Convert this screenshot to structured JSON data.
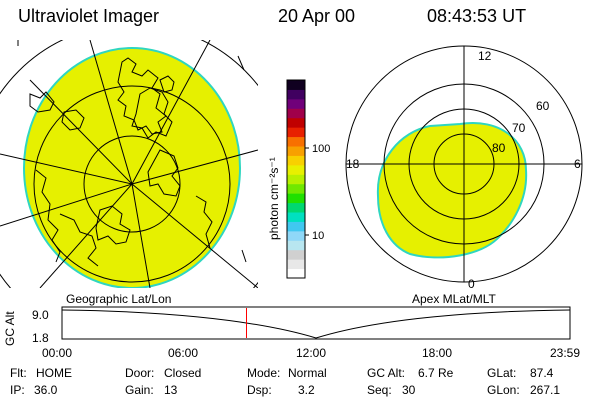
{
  "header": {
    "title": "Ultraviolet Imager",
    "date": "20 Apr 00",
    "time": "08:43:53 UT"
  },
  "colors": {
    "aurora_fill": "#e6f000",
    "aurora_edge": "#2fd6c0",
    "accent_marker": "#ff0000"
  },
  "left_map": {
    "label": "Geographic Lat/Lon"
  },
  "right_map": {
    "label": "Apex MLat/MLT",
    "mlt_labels": [
      "12",
      "18",
      "6",
      "0"
    ],
    "lat_labels": [
      "60",
      "70",
      "80"
    ]
  },
  "colorbar": {
    "unit_label": "photon cm⁻²s⁻¹",
    "ticks": [
      "100",
      "10"
    ],
    "colors": [
      "#ffffff",
      "#e8e8e8",
      "#d0d0d0",
      "#b8e6f0",
      "#8fd8f8",
      "#40c8f0",
      "#00e0c0",
      "#00d870",
      "#20e000",
      "#70e800",
      "#b8f000",
      "#e8f000",
      "#f8d000",
      "#f8a000",
      "#f87000",
      "#e82000",
      "#c00000",
      "#a0004a",
      "#70007a",
      "#400060",
      "#100020"
    ]
  },
  "timeline": {
    "axis_label": "GC Alt",
    "y_ticks": [
      "9.0",
      "1.8"
    ],
    "x_ticks": [
      "00:00",
      "06:00",
      "12:00",
      "18:00",
      "23:59"
    ],
    "marker_time": "08:43"
  },
  "status": {
    "row1": [
      {
        "label": "Flt:",
        "value": "HOME"
      },
      {
        "label": "Door:",
        "value": "Closed"
      },
      {
        "label": "Mode:",
        "value": "Normal"
      },
      {
        "label": "GC Alt:",
        "value": "6.7 Re"
      },
      {
        "label": "GLat:",
        "value": "87.4"
      }
    ],
    "row2": [
      {
        "label": "IP:",
        "value": "36.0"
      },
      {
        "label": "Gain:",
        "value": "13"
      },
      {
        "label": "Dsp:",
        "value": "3.2"
      },
      {
        "label": "Seq:",
        "value": "30"
      },
      {
        "label": "GLon:",
        "value": "267.1"
      }
    ]
  }
}
